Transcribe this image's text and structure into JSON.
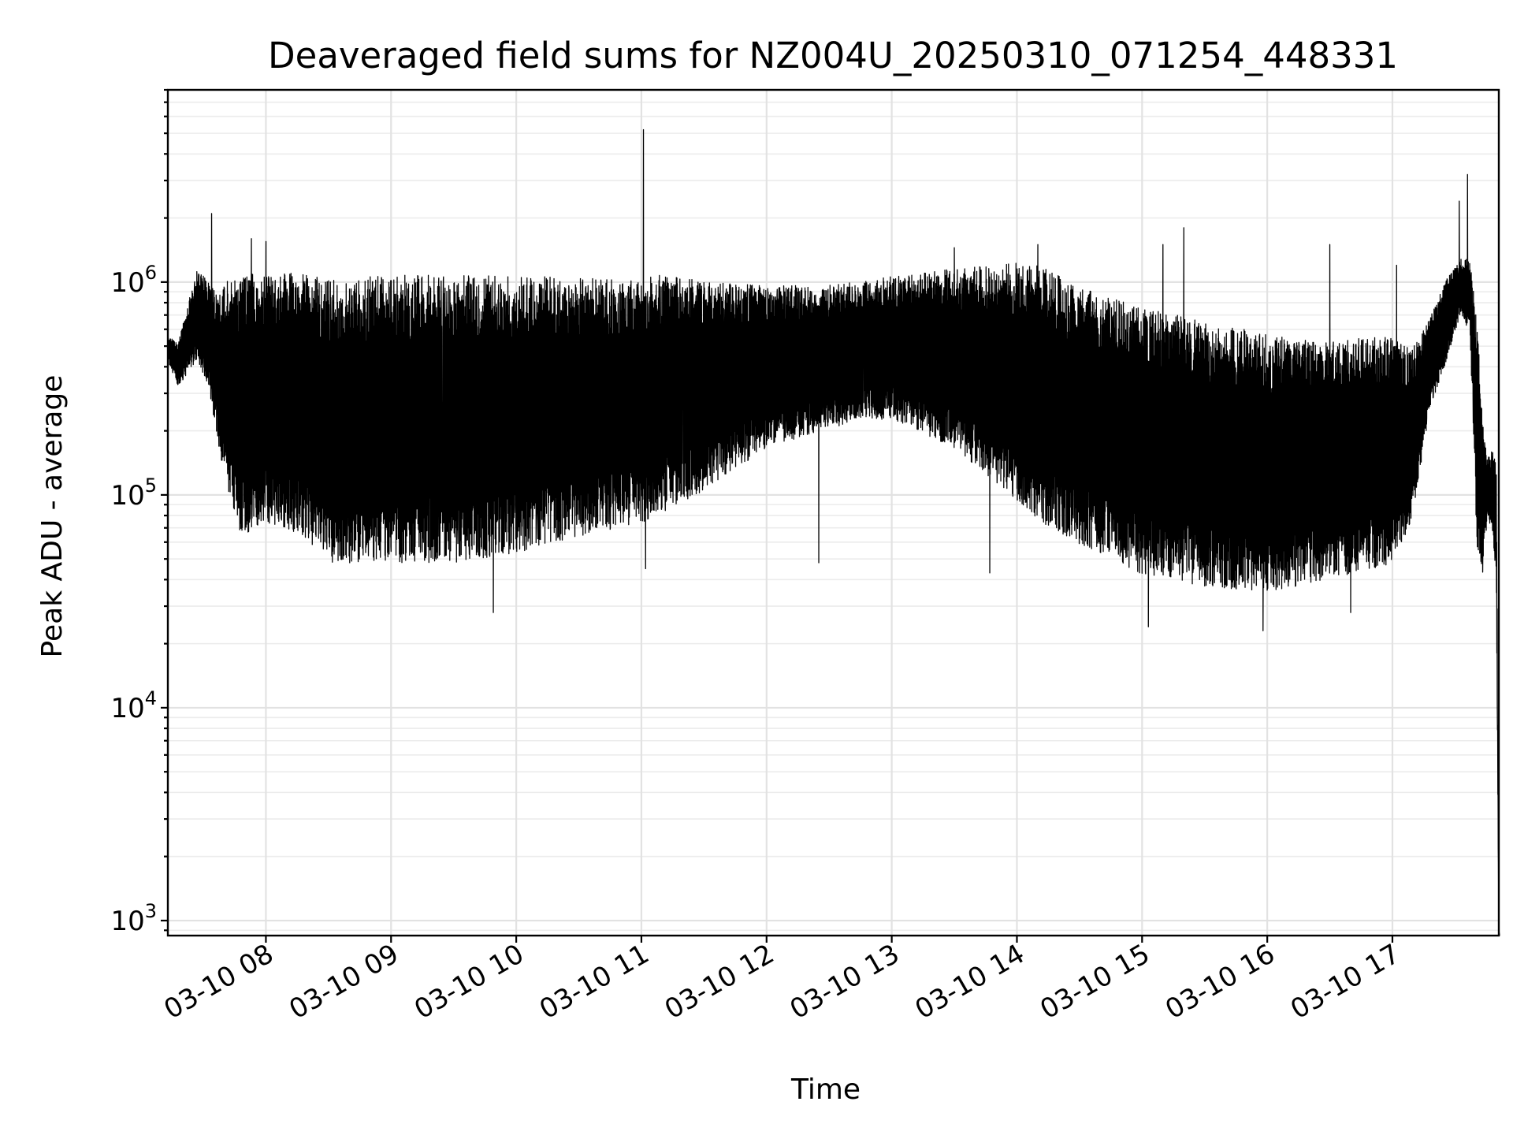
{
  "chart_data": {
    "type": "line",
    "title": "Deaveraged field sums for NZ004U_20250310_071254_448331",
    "xlabel": "Time",
    "ylabel": "Peak ADU - average",
    "yscale": "log",
    "grid": "on (major and minor)",
    "legend": "none",
    "xlim": [
      "03-10 07:13",
      "03-10 17:51"
    ],
    "ylim": [
      850,
      8000000
    ],
    "x_tick_labels": [
      "03-10 08",
      "03-10 09",
      "03-10 10",
      "03-10 11",
      "03-10 12",
      "03-10 13",
      "03-10 14",
      "03-10 15",
      "03-10 16",
      "03-10 17"
    ],
    "x_tick_hours": [
      8,
      9,
      10,
      11,
      12,
      13,
      14,
      15,
      16,
      17
    ],
    "y_ticks": [
      {
        "value": 1000,
        "base": "10",
        "exp": "3"
      },
      {
        "value": 10000,
        "base": "10",
        "exp": "4"
      },
      {
        "value": 100000,
        "base": "10",
        "exp": "5"
      },
      {
        "value": 1000000,
        "base": "10",
        "exp": "6"
      }
    ],
    "series": [
      {
        "color": "#000000",
        "envelope": {
          "hours": [
            7.22,
            7.3,
            7.45,
            7.55,
            7.62,
            7.7,
            7.8,
            8.0,
            8.3,
            8.5,
            9.0,
            9.5,
            10.0,
            10.5,
            11.0,
            11.2,
            11.5,
            12.0,
            12.5,
            13.0,
            13.5,
            14.0,
            14.2,
            14.5,
            15.0,
            15.5,
            16.0,
            16.5,
            17.0,
            17.15,
            17.3,
            17.45,
            17.55,
            17.62,
            17.68,
            17.72,
            17.76,
            17.8,
            17.83,
            17.85
          ],
          "upper": [
            560000,
            520000,
            1200000,
            1000000,
            900000,
            1100000,
            1150000,
            1200000,
            1150000,
            1100000,
            1150000,
            1150000,
            1150000,
            1100000,
            1100000,
            1150000,
            1050000,
            1000000,
            1000000,
            1100000,
            1200000,
            1300000,
            1250000,
            1000000,
            800000,
            700000,
            600000,
            550000,
            600000,
            500000,
            700000,
            1100000,
            1300000,
            1300000,
            700000,
            250000,
            150000,
            170000,
            140000,
            900
          ],
          "lower": [
            420000,
            320000,
            420000,
            300000,
            160000,
            100000,
            60000,
            70000,
            60000,
            45000,
            45000,
            45000,
            50000,
            60000,
            70000,
            80000,
            100000,
            160000,
            200000,
            220000,
            160000,
            90000,
            70000,
            55000,
            40000,
            35000,
            33000,
            38000,
            45000,
            70000,
            250000,
            450000,
            700000,
            550000,
            45000,
            40000,
            80000,
            60000,
            40000,
            900
          ]
        },
        "spikes": [
          {
            "time": "03-10 07:34",
            "value": 2100000
          },
          {
            "time": "03-10 07:53",
            "value": 1600000
          },
          {
            "time": "03-10 08:00",
            "value": 1550000
          },
          {
            "time": "03-10 11:01",
            "value": 5200000
          },
          {
            "time": "03-10 13:30",
            "value": 1450000
          },
          {
            "time": "03-10 14:10",
            "value": 1500000
          },
          {
            "time": "03-10 15:10",
            "value": 1500000
          },
          {
            "time": "03-10 15:20",
            "value": 1800000
          },
          {
            "time": "03-10 16:30",
            "value": 1500000
          },
          {
            "time": "03-10 17:02",
            "value": 1200000
          },
          {
            "time": "03-10 17:32",
            "value": 2400000
          },
          {
            "time": "03-10 17:36",
            "value": 3200000
          }
        ],
        "dips": [
          {
            "time": "03-10 09:49",
            "value": 28000
          },
          {
            "time": "03-10 11:02",
            "value": 45000
          },
          {
            "time": "03-10 12:25",
            "value": 48000
          },
          {
            "time": "03-10 13:47",
            "value": 43000
          },
          {
            "time": "03-10 15:03",
            "value": 24000
          },
          {
            "time": "03-10 15:58",
            "value": 23000
          },
          {
            "time": "03-10 16:40",
            "value": 28000
          }
        ]
      }
    ]
  }
}
